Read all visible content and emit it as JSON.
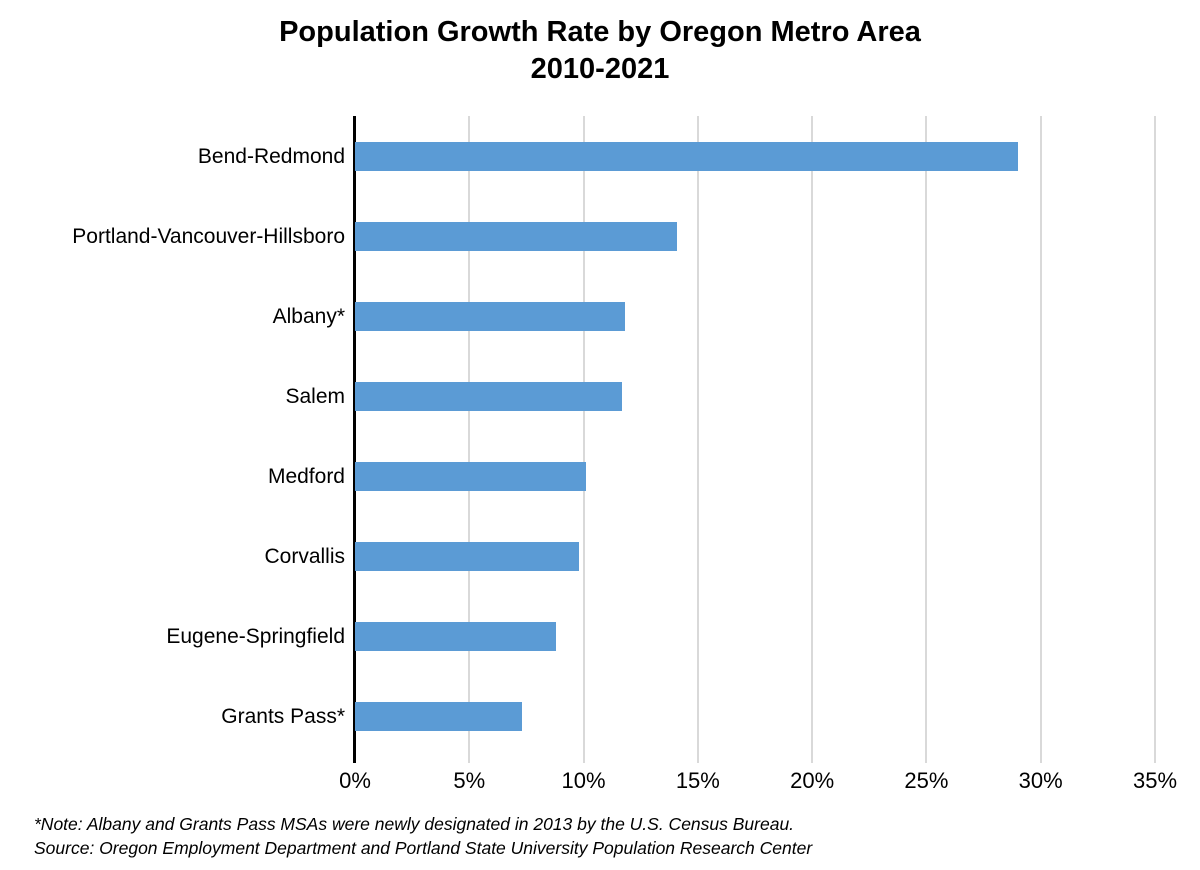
{
  "chart_data": {
    "type": "bar",
    "orientation": "horizontal",
    "title": "Population Growth Rate by Oregon Metro Area",
    "subtitle": "2010-2021",
    "categories": [
      "Bend-Redmond",
      "Portland-Vancouver-Hillsboro",
      "Albany*",
      "Salem",
      "Medford",
      "Corvallis",
      "Eugene-Springfield",
      "Grants Pass*"
    ],
    "values": [
      29.0,
      14.1,
      11.8,
      11.7,
      10.1,
      9.8,
      8.8,
      7.3
    ],
    "unit": "%",
    "xlabel": "",
    "ylabel": "",
    "xlim": [
      0,
      35
    ],
    "x_tick_values": [
      0,
      5,
      10,
      15,
      20,
      25,
      30,
      35
    ],
    "x_tick_labels": [
      "0%",
      "5%",
      "10%",
      "15%",
      "20%",
      "25%",
      "30%",
      "35%"
    ],
    "grid": "vertical-gridlines-on",
    "legend": "none",
    "bar_color": "#5b9bd5",
    "gridline_color": "#d9d9d9",
    "axis_color": "#000000"
  },
  "footnotes": {
    "note": "*Note: Albany and Grants Pass MSAs were newly designated in 2013 by the U.S. Census Bureau.",
    "source": "Source: Oregon Employment Department and Portland State University Population Research Center"
  }
}
